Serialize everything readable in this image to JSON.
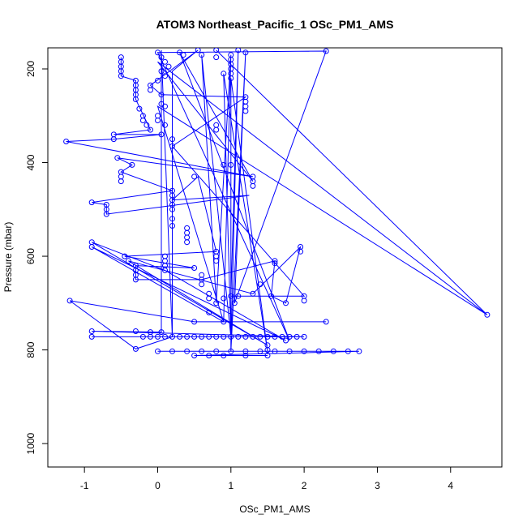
{
  "chart_data": {
    "type": "scatter",
    "title": "ATOM3 Northeast_Pacific_1 OSc_PM1_AMS",
    "xlabel": "OSc_PM1_AMS",
    "ylabel": "Pressure (mbar)",
    "xlim": [
      -1.5,
      4.7
    ],
    "ylim": [
      1050,
      155
    ],
    "y_reversed": true,
    "xticks": [
      -1,
      0,
      1,
      2,
      3,
      4
    ],
    "yticks": [
      200,
      400,
      600,
      800,
      1000
    ],
    "grid": false,
    "colors": {
      "series": "#0000ff"
    },
    "series": [
      {
        "points": [
          [
            -0.5,
            175
          ],
          [
            -0.5,
            185
          ],
          [
            -0.5,
            195
          ],
          [
            -0.5,
            205
          ],
          [
            -0.5,
            215
          ],
          [
            -0.3,
            225
          ],
          [
            -0.3,
            235
          ],
          [
            -0.3,
            245
          ],
          [
            -0.3,
            255
          ],
          [
            -0.3,
            265
          ],
          [
            -0.25,
            285
          ],
          [
            -0.2,
            300
          ],
          [
            -0.2,
            310
          ],
          [
            -0.15,
            320
          ],
          [
            -0.1,
            330
          ],
          [
            -0.6,
            340
          ],
          [
            -0.6,
            350
          ],
          [
            -1.25,
            355
          ],
          [
            -0.55,
            390
          ],
          [
            -0.35,
            405
          ],
          [
            -0.5,
            420
          ],
          [
            -0.5,
            430
          ],
          [
            -0.5,
            440
          ],
          [
            -0.9,
            485
          ],
          [
            -0.7,
            490
          ],
          [
            -0.7,
            500
          ],
          [
            -0.7,
            510
          ],
          [
            -0.9,
            570
          ],
          [
            -0.9,
            580
          ],
          [
            -0.45,
            600
          ],
          [
            -0.4,
            610
          ],
          [
            -0.3,
            620
          ],
          [
            -0.3,
            630
          ],
          [
            -0.3,
            640
          ],
          [
            -0.3,
            650
          ],
          [
            -1.2,
            695
          ],
          [
            -0.9,
            760
          ],
          [
            -0.3,
            798
          ],
          [
            -0.9,
            772
          ],
          [
            -0.2,
            772
          ],
          [
            -0.1,
            772
          ],
          [
            0.0,
            772
          ],
          [
            0.1,
            772
          ],
          [
            0.2,
            772
          ],
          [
            0.3,
            772
          ],
          [
            0.4,
            772
          ],
          [
            0.5,
            772
          ],
          [
            0.6,
            772
          ],
          [
            0.7,
            772
          ],
          [
            0.8,
            772
          ],
          [
            0.9,
            772
          ],
          [
            1.0,
            772
          ],
          [
            1.1,
            772
          ],
          [
            1.2,
            772
          ],
          [
            1.3,
            772
          ],
          [
            1.4,
            772
          ],
          [
            1.5,
            772
          ],
          [
            1.6,
            772
          ],
          [
            1.7,
            772
          ],
          [
            1.8,
            772
          ],
          [
            1.9,
            772
          ],
          [
            2.0,
            772
          ],
          [
            -0.3,
            760
          ],
          [
            -0.1,
            762
          ],
          [
            0.05,
            762
          ],
          [
            -0.0,
            803
          ],
          [
            0.2,
            803
          ],
          [
            0.4,
            803
          ],
          [
            0.6,
            803
          ],
          [
            0.8,
            803
          ],
          [
            1.0,
            803
          ],
          [
            1.2,
            803
          ],
          [
            1.4,
            803
          ],
          [
            1.6,
            803
          ],
          [
            1.8,
            803
          ],
          [
            2.0,
            803
          ],
          [
            2.2,
            803
          ],
          [
            2.4,
            803
          ],
          [
            2.6,
            803
          ],
          [
            2.75,
            803
          ],
          [
            0.5,
            812
          ],
          [
            0.7,
            812
          ],
          [
            0.9,
            812
          ],
          [
            1.2,
            812
          ],
          [
            1.5,
            812
          ],
          [
            0.0,
            165
          ],
          [
            0.05,
            175
          ],
          [
            0.1,
            185
          ],
          [
            0.15,
            195
          ],
          [
            0.05,
            205
          ],
          [
            0.1,
            215
          ],
          [
            0.0,
            225
          ],
          [
            -0.1,
            235
          ],
          [
            -0.1,
            245
          ],
          [
            0.05,
            255
          ],
          [
            0.05,
            275
          ],
          [
            0.1,
            280
          ],
          [
            0.0,
            300
          ],
          [
            0.0,
            310
          ],
          [
            0.1,
            320
          ],
          [
            0.05,
            340
          ],
          [
            0.2,
            350
          ],
          [
            0.2,
            365
          ],
          [
            0.2,
            460
          ],
          [
            0.2,
            470
          ],
          [
            0.2,
            480
          ],
          [
            0.2,
            490
          ],
          [
            0.2,
            500
          ],
          [
            0.2,
            520
          ],
          [
            0.2,
            535
          ],
          [
            0.1,
            600
          ],
          [
            0.1,
            610
          ],
          [
            0.1,
            620
          ],
          [
            0.1,
            630
          ],
          [
            0.4,
            540
          ],
          [
            0.4,
            550
          ],
          [
            0.4,
            560
          ],
          [
            0.4,
            570
          ],
          [
            0.5,
            430
          ],
          [
            0.5,
            625
          ],
          [
            0.6,
            640
          ],
          [
            0.6,
            650
          ],
          [
            0.6,
            660
          ],
          [
            0.7,
            680
          ],
          [
            0.7,
            690
          ],
          [
            0.8,
            700
          ],
          [
            0.7,
            720
          ],
          [
            0.8,
            320
          ],
          [
            0.8,
            330
          ],
          [
            0.9,
            405
          ],
          [
            1.0,
            405
          ],
          [
            0.8,
            590
          ],
          [
            0.8,
            600
          ],
          [
            0.8,
            610
          ],
          [
            1.2,
            260
          ],
          [
            1.2,
            270
          ],
          [
            1.2,
            280
          ],
          [
            1.2,
            290
          ],
          [
            1.3,
            430
          ],
          [
            1.3,
            440
          ],
          [
            1.3,
            450
          ],
          [
            1.0,
            170
          ],
          [
            1.0,
            180
          ],
          [
            1.0,
            190
          ],
          [
            1.0,
            200
          ],
          [
            1.0,
            210
          ],
          [
            1.0,
            220
          ],
          [
            0.9,
            210
          ],
          [
            0.8,
            160
          ],
          [
            1.1,
            160
          ],
          [
            1.2,
            165
          ],
          [
            0.55,
            160
          ],
          [
            0.6,
            170
          ],
          [
            0.8,
            175
          ],
          [
            0.3,
            165
          ],
          [
            0.35,
            170
          ],
          [
            1.3,
            680
          ],
          [
            1.6,
            610
          ],
          [
            1.6,
            615
          ],
          [
            1.55,
            685
          ],
          [
            1.75,
            700
          ],
          [
            1.95,
            580
          ],
          [
            1.95,
            590
          ],
          [
            2.0,
            685
          ],
          [
            2.0,
            695
          ],
          [
            1.75,
            780
          ],
          [
            1.5,
            790
          ],
          [
            1.5,
            800
          ],
          [
            2.3,
            740
          ],
          [
            0.5,
            740
          ],
          [
            0.9,
            740
          ],
          [
            1.1,
            685
          ],
          [
            2.3,
            162
          ],
          [
            4.5,
            725
          ],
          [
            1.05,
            700
          ],
          [
            1.0,
            685
          ],
          [
            1.4,
            660
          ],
          [
            0.9,
            690
          ]
        ],
        "path": [
          [
            -0.5,
            175
          ],
          [
            -0.5,
            215
          ],
          [
            -0.3,
            225
          ],
          [
            -0.3,
            265
          ],
          [
            -0.1,
            330
          ],
          [
            -0.6,
            340
          ],
          [
            0.05,
            340
          ],
          [
            -0.6,
            350
          ],
          [
            -1.25,
            355
          ],
          [
            1.3,
            430
          ],
          [
            -0.55,
            390
          ],
          [
            -0.35,
            405
          ],
          [
            -0.5,
            420
          ],
          [
            0.2,
            460
          ],
          [
            -0.9,
            485
          ],
          [
            -0.7,
            490
          ],
          [
            -0.7,
            510
          ],
          [
            1.25,
            470
          ],
          [
            0.2,
            480
          ],
          [
            0.55,
            430
          ],
          [
            0.8,
            590
          ],
          [
            -0.45,
            600
          ],
          [
            0.5,
            625
          ],
          [
            -0.3,
            620
          ],
          [
            -0.3,
            650
          ],
          [
            0.6,
            650
          ],
          [
            1.6,
            610
          ],
          [
            1.55,
            685
          ],
          [
            1.75,
            700
          ],
          [
            1.95,
            580
          ],
          [
            1.3,
            680
          ],
          [
            -0.4,
            610
          ],
          [
            1.5,
            790
          ],
          [
            -0.9,
            570
          ],
          [
            0.1,
            630
          ],
          [
            1.75,
            780
          ],
          [
            -0.9,
            580
          ],
          [
            0.9,
            740
          ],
          [
            2.3,
            740
          ],
          [
            0.5,
            740
          ],
          [
            -1.2,
            695
          ],
          [
            -0.3,
            798
          ],
          [
            0.2,
            772
          ],
          [
            -0.9,
            772
          ],
          [
            2.0,
            772
          ],
          [
            -0.9,
            760
          ],
          [
            0.05,
            762
          ],
          [
            0.05,
            160
          ],
          [
            0.2,
            772
          ],
          [
            0.2,
            205
          ],
          [
            0.55,
            160
          ],
          [
            -0.1,
            235
          ],
          [
            0.05,
            255
          ],
          [
            1.2,
            260
          ],
          [
            0.2,
            365
          ],
          [
            2.0,
            685
          ],
          [
            1.0,
            685
          ],
          [
            1.1,
            160
          ],
          [
            1.0,
            803
          ],
          [
            1.2,
            165
          ],
          [
            1.05,
            700
          ],
          [
            2.3,
            162
          ],
          [
            0.0,
            165
          ],
          [
            1.8,
            780
          ],
          [
            0.3,
            165
          ],
          [
            1.3,
            440
          ],
          [
            0.0,
            185
          ],
          [
            4.5,
            725
          ],
          [
            0.8,
            160
          ],
          [
            4.5,
            725
          ],
          [
            0.0,
            280
          ],
          [
            0.9,
            740
          ],
          [
            1.0,
            170
          ],
          [
            0.8,
            700
          ],
          [
            0.6,
            170
          ],
          [
            1.0,
            772
          ],
          [
            0.9,
            210
          ],
          [
            1.5,
            803
          ],
          [
            1.0,
            220
          ],
          [
            1.0,
            803
          ],
          [
            -0.0,
            803
          ],
          [
            2.75,
            803
          ],
          [
            0.5,
            812
          ],
          [
            1.5,
            812
          ]
        ]
      }
    ]
  }
}
